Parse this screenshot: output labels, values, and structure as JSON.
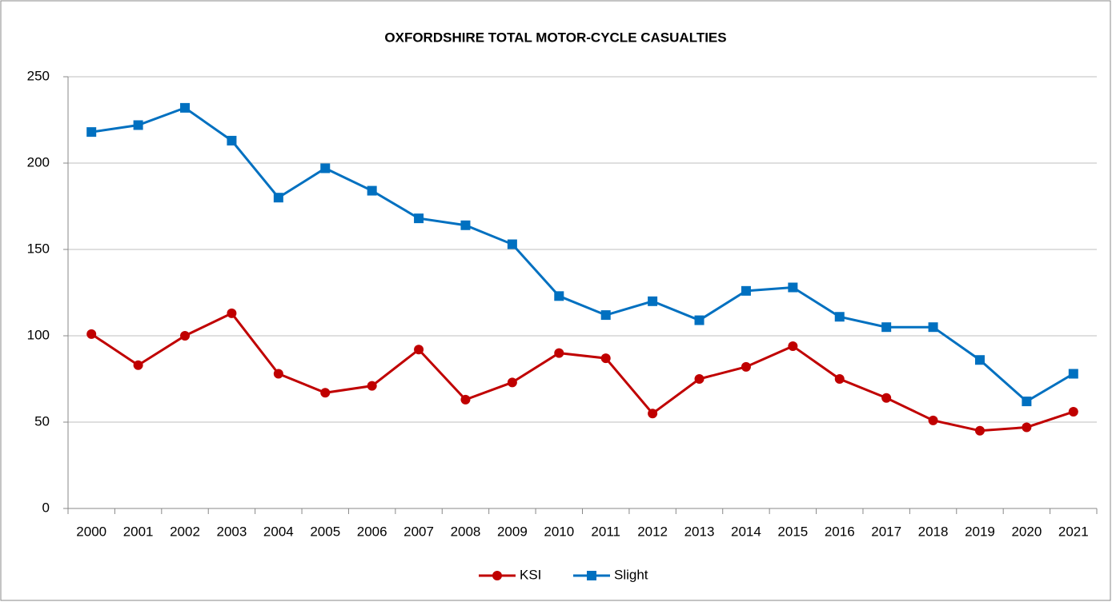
{
  "chart_data": {
    "type": "line",
    "title": "OXFORDSHIRE TOTAL MOTOR-CYCLE CASUALTIES",
    "categories": [
      "2000",
      "2001",
      "2002",
      "2003",
      "2004",
      "2005",
      "2006",
      "2007",
      "2008",
      "2009",
      "2010",
      "2011",
      "2012",
      "2013",
      "2014",
      "2015",
      "2016",
      "2017",
      "2018",
      "2019",
      "2020",
      "2021"
    ],
    "series": [
      {
        "name": "KSI",
        "color": "#c00000",
        "marker": "circle",
        "values": [
          101,
          83,
          100,
          113,
          78,
          67,
          71,
          92,
          63,
          73,
          90,
          87,
          55,
          75,
          82,
          94,
          75,
          64,
          51,
          45,
          47,
          56
        ]
      },
      {
        "name": "Slight",
        "color": "#0070c0",
        "marker": "square",
        "values": [
          218,
          222,
          232,
          213,
          180,
          197,
          184,
          168,
          164,
          153,
          123,
          112,
          120,
          109,
          126,
          128,
          111,
          105,
          105,
          86,
          62,
          78
        ]
      }
    ],
    "ylim": [
      0,
      250
    ],
    "yticks": [
      0,
      50,
      100,
      150,
      200,
      250
    ],
    "grid": true,
    "legend": "bottom"
  }
}
